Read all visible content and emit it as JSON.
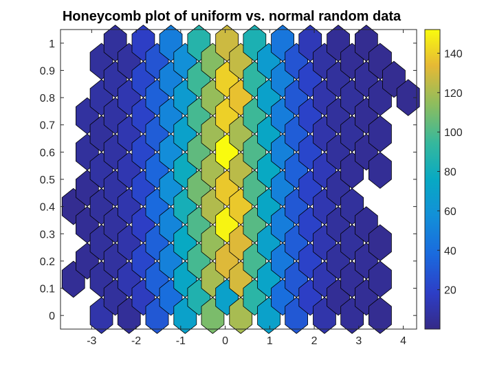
{
  "chart_data": {
    "type": "heatmap",
    "title": "Honeycomb plot of uniform vs. normal random data",
    "xlabel": "",
    "ylabel": "",
    "xlim": [
      -3.7,
      4.3
    ],
    "ylim": [
      -0.05,
      1.05
    ],
    "xticks": [
      -3,
      -2,
      -1,
      0,
      1,
      2,
      3,
      4
    ],
    "yticks": [
      0,
      0.1,
      0.2,
      0.3,
      0.4,
      0.5,
      0.6,
      0.7,
      0.8,
      0.9,
      1
    ],
    "grid": false,
    "colormap": "parula",
    "colorbar": {
      "min": 0,
      "max": 152,
      "ticks": [
        20,
        40,
        60,
        80,
        100,
        120,
        140
      ]
    },
    "hex_columns_x": [
      -3.41,
      -3.1,
      -2.78,
      -2.47,
      -2.16,
      -1.84,
      -1.53,
      -1.22,
      -0.9,
      -0.59,
      -0.28,
      0.04,
      0.35,
      0.66,
      0.98,
      1.29,
      1.6,
      1.91,
      2.23,
      2.54,
      2.85,
      3.17,
      3.48,
      3.79,
      4.11
    ],
    "hex_row_centers_even": [
      0.0,
      0.133,
      0.267,
      0.4,
      0.533,
      0.667,
      0.8,
      0.933
    ],
    "hex_row_centers_odd": [
      0.067,
      0.2,
      0.333,
      0.467,
      0.6,
      0.733,
      0.867,
      1.0
    ],
    "hex_counts": [
      [
        null,
        4,
        null,
        3,
        null,
        null,
        null,
        null
      ],
      [
        null,
        4,
        4,
        4,
        6,
        7,
        null,
        null
      ],
      [
        10,
        6,
        6,
        6,
        8,
        6,
        8,
        6
      ],
      [
        6,
        7,
        7,
        8,
        8,
        8,
        8,
        6
      ],
      [
        5,
        12,
        10,
        11,
        12,
        12,
        12,
        7
      ],
      [
        16,
        22,
        18,
        22,
        22,
        20,
        22,
        18
      ],
      [
        30,
        34,
        34,
        38,
        36,
        32,
        34,
        28
      ],
      [
        40,
        50,
        52,
        58,
        56,
        52,
        50,
        48
      ],
      [
        70,
        74,
        76,
        82,
        78,
        70,
        66,
        58
      ],
      [
        86,
        98,
        100,
        108,
        104,
        98,
        96,
        88
      ],
      [
        110,
        120,
        116,
        122,
        120,
        118,
        116,
        112
      ],
      [
        70,
        132,
        150,
        138,
        152,
        140,
        140,
        128
      ],
      [
        120,
        130,
        132,
        138,
        124,
        120,
        136,
        126
      ],
      [
        90,
        98,
        102,
        100,
        100,
        96,
        92,
        84
      ],
      [
        70,
        72,
        70,
        74,
        76,
        74,
        70,
        66
      ],
      [
        40,
        46,
        48,
        50,
        50,
        48,
        50,
        44
      ],
      [
        30,
        30,
        32,
        30,
        34,
        32,
        30,
        28
      ],
      [
        18,
        20,
        20,
        20,
        22,
        20,
        20,
        14
      ],
      [
        10,
        12,
        12,
        12,
        14,
        10,
        10,
        8
      ],
      [
        4,
        6,
        6,
        6,
        6,
        6,
        6,
        4
      ],
      [
        5,
        5,
        6,
        6,
        5,
        6,
        6,
        4
      ],
      [
        4,
        5,
        4,
        null,
        4,
        4,
        5,
        3
      ],
      [
        3,
        4,
        3,
        null,
        4,
        4,
        4,
        3
      ],
      [
        null,
        null,
        null,
        null,
        null,
        null,
        3,
        null
      ],
      [
        null,
        null,
        null,
        null,
        null,
        null,
        3,
        null
      ]
    ]
  }
}
